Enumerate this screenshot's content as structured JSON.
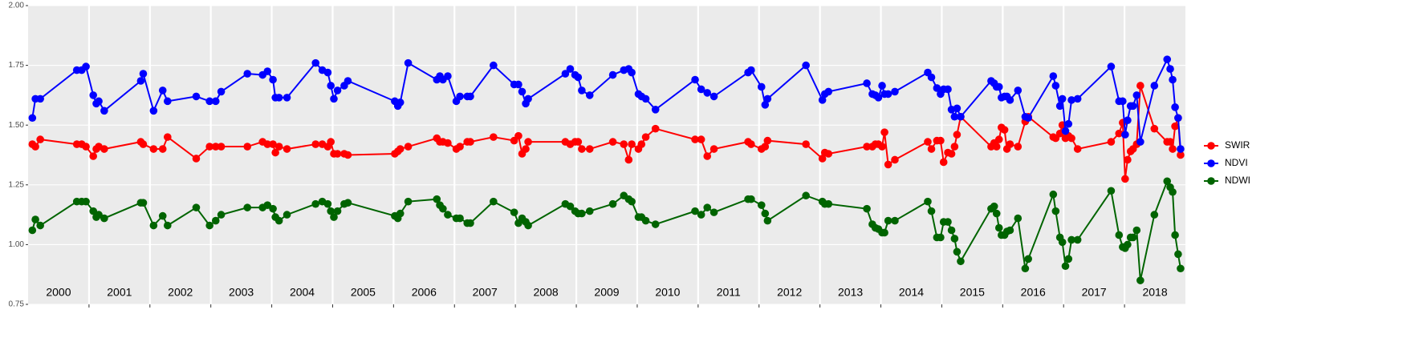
{
  "chart_data": {
    "type": "line",
    "x": [
      2000.07,
      2000.12,
      2000.2,
      2000.8,
      2000.88,
      2000.95,
      2001.07,
      2001.12,
      2001.16,
      2001.25,
      2001.85,
      2001.89,
      2002.06,
      2002.21,
      2002.29,
      2002.76,
      2002.98,
      2003.08,
      2003.17,
      2003.6,
      2003.85,
      2003.93,
      2004.02,
      2004.06,
      2004.12,
      2004.25,
      2004.72,
      2004.83,
      2004.92,
      2004.97,
      2005.02,
      2005.08,
      2005.19,
      2005.25,
      2006.02,
      2006.07,
      2006.11,
      2006.24,
      2006.71,
      2006.76,
      2006.81,
      2006.89,
      2007.03,
      2007.09,
      2007.21,
      2007.26,
      2007.64,
      2007.98,
      2008.05,
      2008.11,
      2008.17,
      2008.21,
      2008.82,
      2008.9,
      2008.98,
      2009.03,
      2009.09,
      2009.22,
      2009.6,
      2009.78,
      2009.86,
      2009.91,
      2010.02,
      2010.07,
      2010.14,
      2010.3,
      2010.95,
      2011.05,
      2011.15,
      2011.26,
      2011.82,
      2011.87,
      2012.04,
      2012.1,
      2012.14,
      2012.77,
      2013.04,
      2013.08,
      2013.14,
      2013.77,
      2013.86,
      2013.91,
      2013.96,
      2014.02,
      2014.06,
      2014.12,
      2014.23,
      2014.77,
      2014.83,
      2014.92,
      2014.98,
      2015.03,
      2015.1,
      2015.16,
      2015.21,
      2015.25,
      2015.31,
      2015.81,
      2015.86,
      2015.9,
      2015.94,
      2015.98,
      2016.03,
      2016.07,
      2016.12,
      2016.25,
      2016.37,
      2016.42,
      2016.83,
      2016.87,
      2016.94,
      2016.98,
      2017.03,
      2017.08,
      2017.13,
      2017.23,
      2017.78,
      2017.91,
      2017.97,
      2018.01,
      2018.05,
      2018.1,
      2018.14,
      2018.2,
      2018.26,
      2018.49,
      2018.7,
      2018.75,
      2018.79,
      2018.83,
      2018.88,
      2018.92
    ],
    "series": [
      {
        "name": "SWIR",
        "color": "#ff0000",
        "values": [
          1.42,
          1.41,
          1.44,
          1.42,
          1.42,
          1.41,
          1.37,
          1.4,
          1.41,
          1.4,
          1.43,
          1.42,
          1.4,
          1.4,
          1.45,
          1.36,
          1.41,
          1.41,
          1.41,
          1.41,
          1.43,
          1.42,
          1.42,
          1.385,
          1.41,
          1.4,
          1.42,
          1.42,
          1.41,
          1.43,
          1.38,
          1.38,
          1.38,
          1.375,
          1.38,
          1.39,
          1.4,
          1.41,
          1.445,
          1.43,
          1.43,
          1.425,
          1.4,
          1.41,
          1.43,
          1.43,
          1.45,
          1.435,
          1.455,
          1.38,
          1.4,
          1.43,
          1.43,
          1.42,
          1.43,
          1.43,
          1.4,
          1.4,
          1.43,
          1.42,
          1.355,
          1.42,
          1.4,
          1.42,
          1.45,
          1.485,
          1.44,
          1.44,
          1.37,
          1.4,
          1.43,
          1.42,
          1.4,
          1.41,
          1.435,
          1.42,
          1.36,
          1.385,
          1.38,
          1.41,
          1.41,
          1.42,
          1.42,
          1.41,
          1.47,
          1.335,
          1.355,
          1.43,
          1.4,
          1.435,
          1.435,
          1.345,
          1.385,
          1.38,
          1.41,
          1.46,
          1.535,
          1.41,
          1.425,
          1.41,
          1.44,
          1.49,
          1.48,
          1.4,
          1.42,
          1.41,
          1.515,
          1.535,
          1.45,
          1.445,
          1.465,
          1.5,
          1.445,
          1.455,
          1.445,
          1.4,
          1.43,
          1.465,
          1.51,
          1.275,
          1.355,
          1.39,
          1.4,
          1.42,
          1.665,
          1.485,
          1.43,
          1.43,
          1.4,
          1.495,
          1.53,
          1.375
        ]
      },
      {
        "name": "NDVI",
        "color": "#0000ff",
        "values": [
          1.53,
          1.61,
          1.61,
          1.73,
          1.73,
          1.745,
          1.625,
          1.59,
          1.6,
          1.56,
          1.685,
          1.715,
          1.56,
          1.645,
          1.6,
          1.62,
          1.6,
          1.6,
          1.64,
          1.715,
          1.71,
          1.725,
          1.69,
          1.615,
          1.615,
          1.615,
          1.76,
          1.73,
          1.72,
          1.665,
          1.61,
          1.645,
          1.665,
          1.685,
          1.6,
          1.58,
          1.595,
          1.76,
          1.69,
          1.705,
          1.69,
          1.705,
          1.6,
          1.62,
          1.62,
          1.62,
          1.75,
          1.67,
          1.67,
          1.64,
          1.59,
          1.61,
          1.715,
          1.735,
          1.71,
          1.7,
          1.645,
          1.625,
          1.71,
          1.73,
          1.735,
          1.72,
          1.63,
          1.62,
          1.61,
          1.565,
          1.69,
          1.65,
          1.635,
          1.62,
          1.72,
          1.73,
          1.66,
          1.585,
          1.61,
          1.75,
          1.605,
          1.63,
          1.64,
          1.675,
          1.63,
          1.625,
          1.615,
          1.665,
          1.63,
          1.63,
          1.64,
          1.72,
          1.7,
          1.655,
          1.63,
          1.65,
          1.65,
          1.565,
          1.535,
          1.57,
          1.535,
          1.685,
          1.675,
          1.66,
          1.66,
          1.615,
          1.62,
          1.62,
          1.605,
          1.645,
          1.535,
          1.53,
          1.705,
          1.665,
          1.58,
          1.61,
          1.475,
          1.505,
          1.605,
          1.61,
          1.745,
          1.6,
          1.6,
          1.46,
          1.52,
          1.58,
          1.58,
          1.625,
          1.43,
          1.665,
          1.775,
          1.735,
          1.69,
          1.575,
          1.53,
          1.4
        ]
      },
      {
        "name": "NDWI",
        "color": "#006400",
        "values": [
          1.06,
          1.105,
          1.08,
          1.18,
          1.18,
          1.18,
          1.14,
          1.115,
          1.125,
          1.11,
          1.175,
          1.175,
          1.08,
          1.12,
          1.08,
          1.155,
          1.08,
          1.1,
          1.125,
          1.155,
          1.155,
          1.165,
          1.15,
          1.115,
          1.1,
          1.125,
          1.17,
          1.18,
          1.17,
          1.14,
          1.115,
          1.14,
          1.17,
          1.175,
          1.12,
          1.11,
          1.13,
          1.18,
          1.19,
          1.165,
          1.15,
          1.125,
          1.11,
          1.11,
          1.09,
          1.09,
          1.18,
          1.135,
          1.09,
          1.11,
          1.095,
          1.08,
          1.17,
          1.16,
          1.14,
          1.13,
          1.13,
          1.14,
          1.17,
          1.205,
          1.19,
          1.18,
          1.115,
          1.115,
          1.1,
          1.085,
          1.14,
          1.125,
          1.155,
          1.135,
          1.19,
          1.19,
          1.165,
          1.13,
          1.1,
          1.205,
          1.18,
          1.17,
          1.17,
          1.15,
          1.085,
          1.07,
          1.065,
          1.05,
          1.05,
          1.1,
          1.1,
          1.18,
          1.14,
          1.03,
          1.03,
          1.095,
          1.095,
          1.06,
          1.025,
          0.97,
          0.93,
          1.15,
          1.16,
          1.13,
          1.07,
          1.04,
          1.04,
          1.055,
          1.06,
          1.11,
          0.9,
          0.94,
          1.21,
          1.14,
          1.03,
          1.01,
          0.91,
          0.94,
          1.02,
          1.02,
          1.225,
          1.04,
          0.99,
          0.985,
          1.0,
          1.03,
          1.03,
          1.06,
          0.85,
          1.125,
          1.265,
          1.24,
          1.22,
          1.04,
          0.96,
          0.9
        ]
      }
    ],
    "years": [
      2000,
      2001,
      2002,
      2003,
      2004,
      2005,
      2006,
      2007,
      2008,
      2009,
      2010,
      2011,
      2012,
      2013,
      2014,
      2015,
      2016,
      2017,
      2018
    ],
    "xlim": [
      2000,
      2019
    ],
    "ylim": [
      0.75,
      2.0
    ],
    "yticks": [
      0.75,
      {
        "value": 1.0,
        "label": "1.00"
      },
      1.25,
      {
        "value": 1.5,
        "label": "1.50"
      },
      1.75,
      {
        "value": 2.0,
        "label": "2.00"
      }
    ],
    "grid": true,
    "legend": "right"
  }
}
